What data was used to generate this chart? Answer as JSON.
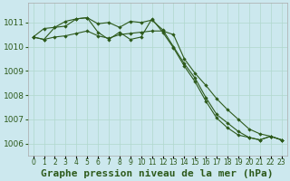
{
  "title": "Graphe pression niveau de la mer (hPa)",
  "bg_color": "#cce8ee",
  "grid_color": "#b0d8cc",
  "line_color": "#2d5a1b",
  "x_labels": [
    "0",
    "1",
    "2",
    "3",
    "4",
    "5",
    "6",
    "7",
    "8",
    "9",
    "10",
    "11",
    "12",
    "13",
    "14",
    "15",
    "16",
    "17",
    "18",
    "19",
    "20",
    "21",
    "22",
    "23"
  ],
  "line1": [
    1010.4,
    1010.75,
    1010.8,
    1011.05,
    1011.15,
    1011.2,
    1010.95,
    1011.0,
    1010.8,
    1011.05,
    1011.0,
    1011.1,
    1010.7,
    1010.0,
    1009.3,
    1008.7,
    1007.9,
    1007.2,
    1006.85,
    1006.5,
    1006.25,
    1006.15,
    1006.3,
    1006.15
  ],
  "line2": [
    1010.4,
    1010.3,
    1010.4,
    1010.45,
    1010.55,
    1010.65,
    1010.45,
    1010.35,
    1010.5,
    1010.55,
    1010.6,
    1010.65,
    1010.65,
    1010.5,
    1009.5,
    1008.9,
    1008.4,
    1007.85,
    1007.4,
    1007.0,
    1006.6,
    1006.4,
    1006.3,
    1006.15
  ],
  "line3": [
    1010.4,
    1010.3,
    1010.8,
    1010.85,
    1011.15,
    1011.2,
    1010.6,
    1010.3,
    1010.6,
    1010.3,
    1010.4,
    1011.15,
    1010.6,
    1009.95,
    1009.2,
    1008.55,
    1007.75,
    1007.05,
    1006.65,
    1006.35,
    1006.25,
    1006.15,
    1006.3,
    1006.15
  ],
  "ylim_min": 1005.5,
  "ylim_max": 1011.8,
  "yticks": [
    1006,
    1007,
    1008,
    1009,
    1010,
    1011
  ],
  "title_fontsize": 8,
  "tick_fontsize": 6.5,
  "xtick_fontsize": 5.5
}
